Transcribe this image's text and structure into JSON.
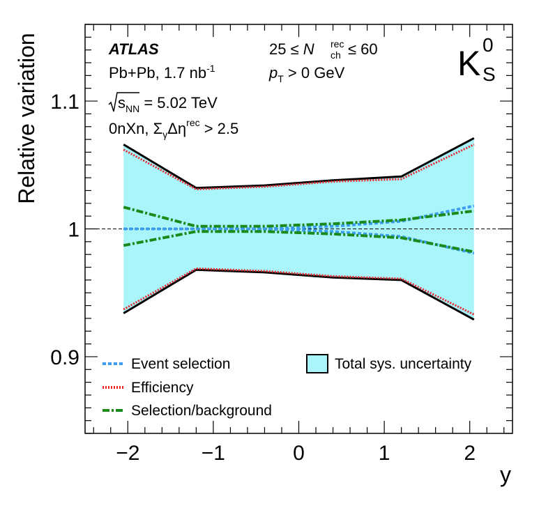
{
  "chart_data": {
    "type": "line",
    "ylabel": "Relative variation",
    "xlabel": "y",
    "xlim": [
      -2.5,
      2.5
    ],
    "ylim": [
      0.84,
      1.16
    ],
    "x_ticks": [
      -2,
      -1,
      0,
      1,
      2
    ],
    "x_tick_labels": [
      "−2",
      "−1",
      "0",
      "1",
      "2"
    ],
    "y_ticks": [
      0.9,
      1.0,
      1.1
    ],
    "y_tick_labels": [
      "0.9",
      "1",
      "1.1"
    ],
    "reference_line": 1.0,
    "x": [
      -2.05,
      -1.2,
      -0.4,
      0.4,
      1.2,
      2.05
    ],
    "series": [
      {
        "name": "Total sys. uncertainty",
        "kind": "band",
        "upper": [
          1.066,
          1.032,
          1.034,
          1.038,
          1.041,
          1.071
        ],
        "lower": [
          0.934,
          0.968,
          0.966,
          0.962,
          0.96,
          0.929
        ],
        "color": "#aaf5fa"
      },
      {
        "name": "Event selection",
        "kind": "band-lines",
        "upper": [
          1.0,
          1.0,
          1.0,
          1.002,
          1.006,
          1.018
        ],
        "lower": [
          1.0,
          1.0,
          1.0,
          0.998,
          0.994,
          0.981
        ],
        "color": "#3c9cf0"
      },
      {
        "name": "Efficiency",
        "kind": "band-lines",
        "upper": [
          1.062,
          1.031,
          1.033,
          1.037,
          1.039,
          1.066
        ],
        "lower": [
          0.937,
          0.969,
          0.967,
          0.963,
          0.961,
          0.933
        ],
        "color": "#e8262a"
      },
      {
        "name": "Selection/background",
        "kind": "band-lines",
        "upper": [
          1.017,
          1.002,
          1.002,
          1.004,
          1.007,
          1.014
        ],
        "lower": [
          0.987,
          0.998,
          0.998,
          0.996,
          0.993,
          0.982
        ],
        "color": "#1a8a1a"
      }
    ],
    "legend": [
      "Event selection",
      "Efficiency",
      "Selection/background",
      "Total sys. uncertainty"
    ],
    "legend_position": "bottom",
    "annotations": {
      "experiment": "ATLAS",
      "system": "Pb+Pb, 1.7 nb",
      "system_exp": "-1",
      "energy_s": "s",
      "energy_sub": "NN",
      "energy_value": " = 5.02 TeV",
      "class_pre": "0nXn, Σ",
      "class_sub": "γ",
      "class_mid": "Δη",
      "class_sup": "rec",
      "class_post": " > 2.5",
      "nch_pre": "25 ≤ ",
      "nch_n": "N",
      "nch_sup": "rec",
      "nch_sub": "ch",
      "nch_post": " ≤ 60",
      "pt_p": "p",
      "pt_sub": "T",
      "pt_post": " > 0 GeV",
      "particle": "K",
      "particle_sup": "0",
      "particle_sub": "S"
    }
  }
}
